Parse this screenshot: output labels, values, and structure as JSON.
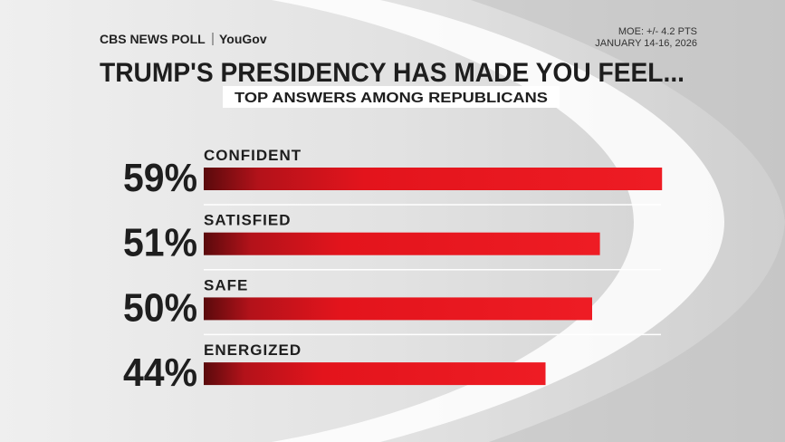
{
  "chart_data": {
    "type": "bar",
    "brand": "CBS NEWS POLL",
    "partner": "YouGov",
    "moe": "MOE: +/- 4.2 PTS",
    "date": "JANUARY 14-16, 2026",
    "title": "TRUMP'S PRESIDENCY HAS MADE YOU FEEL...",
    "subtitle": "TOP ANSWERS AMONG REPUBLICANS",
    "categories": [
      "CONFIDENT",
      "SATISFIED",
      "SAFE",
      "ENERGIZED"
    ],
    "values": [
      59,
      51,
      50,
      44
    ],
    "value_labels": [
      "59%",
      "51%",
      "50%",
      "44%"
    ],
    "color": "#e3141c"
  }
}
